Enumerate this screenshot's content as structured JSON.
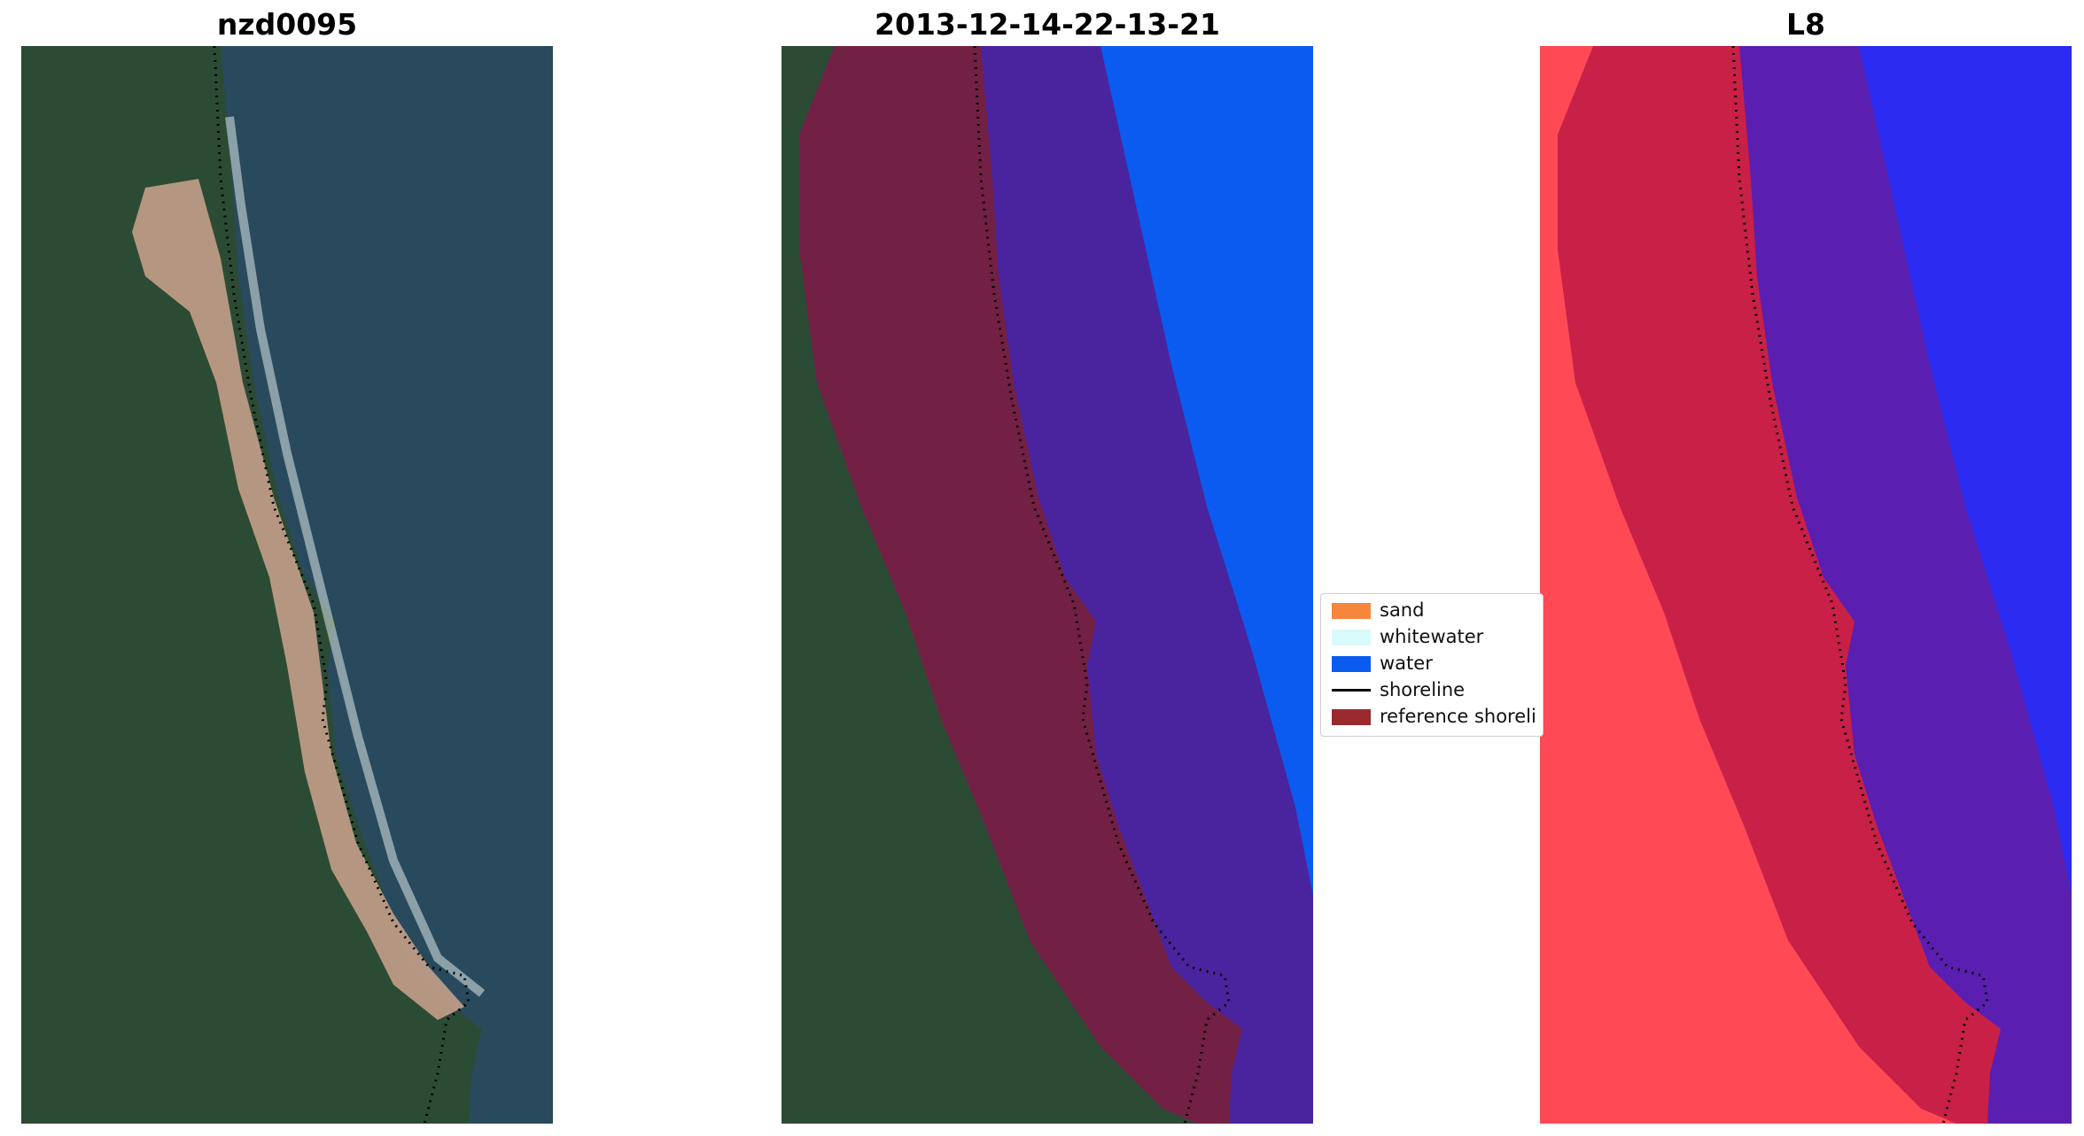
{
  "panels": [
    {
      "title": "nzd0095"
    },
    {
      "title": "2013-12-14-22-13-21"
    },
    {
      "title": "L8"
    }
  ],
  "legend": {
    "items": [
      {
        "label": "sand",
        "color": "#f5863b",
        "kind": "patch"
      },
      {
        "label": "whitewater",
        "color": "#d8fafa",
        "kind": "patch"
      },
      {
        "label": "water",
        "color": "#0b5bf0",
        "kind": "patch"
      },
      {
        "label": "shoreline",
        "color": "#000000",
        "kind": "line"
      },
      {
        "label": "reference shoreli",
        "color": "#9a2a2e",
        "kind": "patch"
      }
    ]
  },
  "colors": {
    "land": "#2c4b34",
    "sea": "#284a5c",
    "sand_beach": "#c4a089",
    "buffer_overlay": "#7a1c47",
    "water_class": "#0b5bf0",
    "water_under_buffer": "#4a249e",
    "index_high": "#ff4a55",
    "index_buffer": "#c41c48",
    "index_water": "#2a2af0"
  }
}
